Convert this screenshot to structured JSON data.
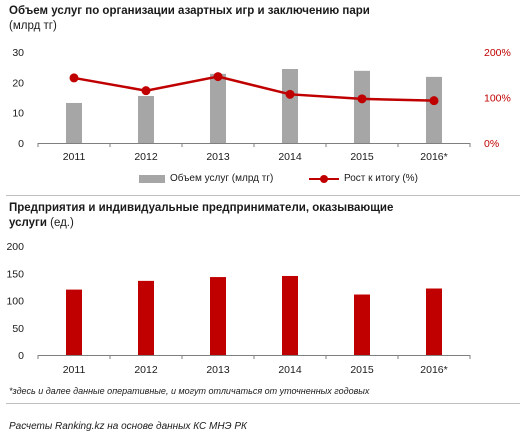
{
  "chart1": {
    "title": "Объем услуг по организации  азартных игр и заключению  пари",
    "subtitle": "(млрд тг)",
    "legend_bar": "Объем услуг (млрд тг)",
    "legend_line": "Рост к итогу (%)"
  },
  "chart2": {
    "title_line1": "Предприятия  и индивидуальные  предприниматели,  оказывающие",
    "title_line2_bold": "услуги",
    "title_line2_rest": " (ед.)"
  },
  "note": "*здесь и далее данные оперативные, и могут отличаться от уточненных годовых",
  "source": "Расчеты Ranking.kz на основе данных КС МНЭ РК",
  "colors": {
    "bar_gray": "#a6a6a6",
    "accent_red": "#c00000"
  },
  "chart_data": [
    {
      "type": "bar",
      "categories": [
        "2011",
        "2012",
        "2013",
        "2014",
        "2015",
        "2016*"
      ],
      "series": [
        {
          "name": "Объем услуг (млрд тг)",
          "type": "bar",
          "axis": "left",
          "values": [
            13.2,
            15.5,
            22.8,
            24.4,
            23.8,
            21.8
          ]
        },
        {
          "name": "Рост к итогу (%)",
          "type": "line",
          "axis": "right",
          "values": [
            143,
            115,
            146,
            107,
            97,
            93
          ]
        }
      ],
      "y_left": {
        "ticks": [
          "0",
          "10",
          "20",
          "30"
        ],
        "ylim": [
          0,
          30
        ]
      },
      "y_right": {
        "ticks": [
          "0%",
          "100%",
          "200%"
        ],
        "ylim": [
          0,
          200
        ]
      },
      "grid": false,
      "legend_position": "bottom"
    },
    {
      "type": "bar",
      "categories": [
        "2011",
        "2012",
        "2013",
        "2014",
        "2015",
        "2016*"
      ],
      "values": [
        120,
        136,
        143,
        145,
        111,
        122
      ],
      "y_left": {
        "ticks": [
          "0",
          "50",
          "100",
          "150",
          "200"
        ],
        "ylim": [
          0,
          200
        ]
      },
      "grid": false
    }
  ]
}
